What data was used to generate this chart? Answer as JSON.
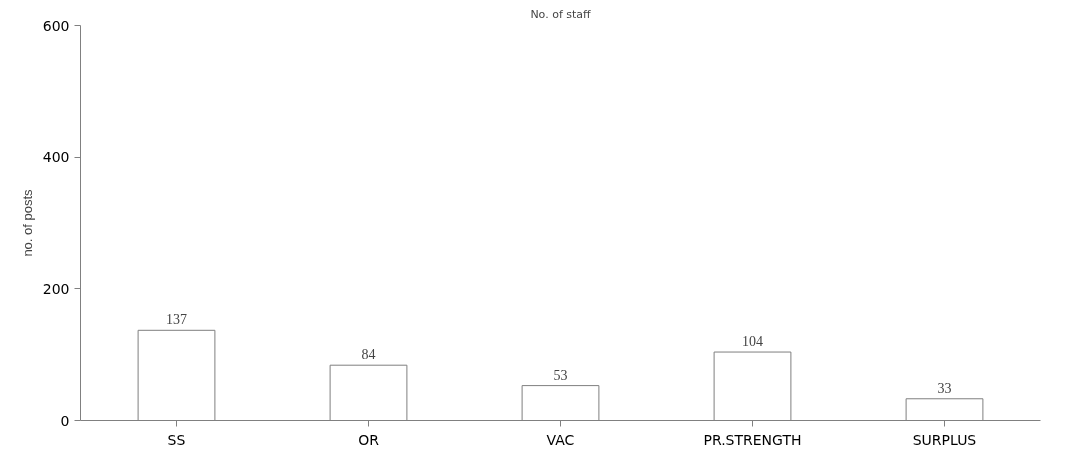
{
  "chart_data": {
    "type": "bar",
    "title": "No. of staff",
    "ylabel": "no. of posts",
    "categories": [
      "SS",
      "OR",
      "VAC",
      "PR.STRENGTH",
      "SURPLUS"
    ],
    "values": [
      137,
      84,
      53,
      104,
      33
    ],
    "color": "#ffffff",
    "ylim": [
      0,
      600
    ],
    "yticks": [
      0,
      200,
      400,
      600
    ],
    "grid": false,
    "data_labels": true
  }
}
